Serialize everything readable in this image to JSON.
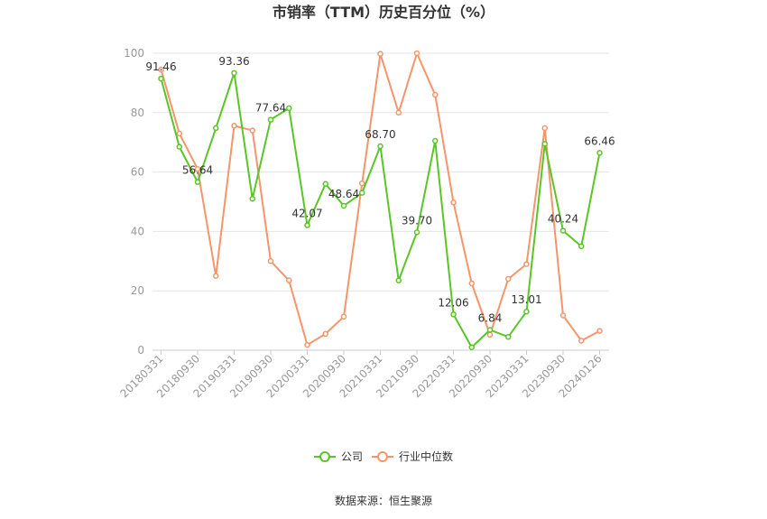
{
  "chart_data": {
    "type": "line",
    "title": "市销率（TTM）历史百分位（%）",
    "ylim": [
      0,
      100
    ],
    "y_ticks": [
      0,
      20,
      40,
      60,
      80,
      100
    ],
    "x_tick_labels": [
      "20180331",
      "20180930",
      "20190331",
      "20190930",
      "20200331",
      "20200930",
      "20210331",
      "20210930",
      "20220331",
      "20220930",
      "20230331",
      "20230930",
      "20240126"
    ],
    "grid": "horizontal",
    "legend_position": "bottom",
    "series": [
      {
        "name": "公司",
        "color": "#5ac526",
        "values": [
          91.46,
          68.5,
          56.64,
          74.8,
          93.36,
          51.0,
          77.64,
          81.5,
          42.07,
          56.0,
          48.64,
          53.0,
          68.7,
          23.5,
          39.7,
          70.5,
          12.06,
          1.0,
          6.84,
          4.5,
          13.01,
          69.5,
          40.24,
          35.0,
          66.46
        ]
      },
      {
        "name": "行业中位数",
        "color": "#f4956b",
        "values": [
          94.5,
          73.0,
          61.0,
          25.0,
          75.6,
          74.0,
          30.0,
          23.5,
          1.8,
          5.5,
          11.3,
          56.2,
          99.8,
          80.0,
          100.0,
          86.0,
          49.8,
          22.5,
          5.2,
          24.0,
          29.0,
          74.8,
          11.7,
          3.2,
          6.5
        ]
      }
    ],
    "data_labels": [
      {
        "index": 0,
        "text": "91.46"
      },
      {
        "index": 2,
        "text": "56.64"
      },
      {
        "index": 4,
        "text": "93.36"
      },
      {
        "index": 6,
        "text": "77.64"
      },
      {
        "index": 8,
        "text": "42.07"
      },
      {
        "index": 10,
        "text": "48.64"
      },
      {
        "index": 12,
        "text": "68.70"
      },
      {
        "index": 14,
        "text": "39.70"
      },
      {
        "index": 16,
        "text": "12.06"
      },
      {
        "index": 18,
        "text": "6.84"
      },
      {
        "index": 20,
        "text": "13.01"
      },
      {
        "index": 22,
        "text": "40.24"
      },
      {
        "index": 24,
        "text": "66.46"
      }
    ]
  },
  "legend": {
    "company_label": "公司",
    "industry_label": "行业中位数"
  },
  "source": "数据来源：恒生聚源"
}
